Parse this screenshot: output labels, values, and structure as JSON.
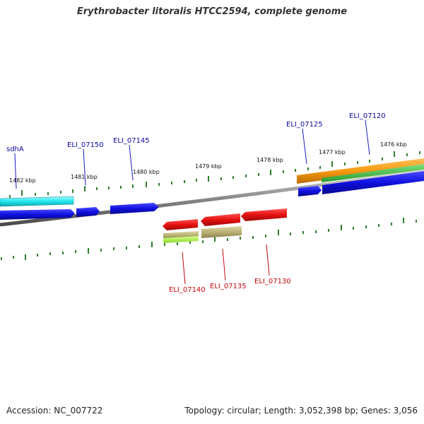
{
  "title": "Erythrobacter litoralis HTCC2594, complete genome",
  "footer": {
    "accession": "Accession: NC_007722",
    "summary": "Topology: circular; Length: 3,052,398 bp; Genes: 3,056"
  },
  "ruler": [
    "1482 kbp",
    "1481 kbp",
    "1480 kbp",
    "1479 kbp",
    "1478 kbp",
    "1477 kbp",
    "1476 kbp"
  ],
  "genes_forward": [
    "sdhA",
    "ELI_07150",
    "ELI_07145",
    "ELI_07125",
    "ELI_07120"
  ],
  "genes_reverse": [
    "ELI_07140",
    "ELI_07135",
    "ELI_07130"
  ],
  "colors": {
    "forward_gene": "#1010e0",
    "reverse_gene": "#e61010",
    "backbone": "#8a8a8a",
    "tick": "#2e7d2e",
    "cyan_feature": "#22e6ee",
    "orange_feature": "#f79a10",
    "green_feature": "#3ec23e",
    "olive_feature": "#b9b073",
    "lime_feature": "#aef03c",
    "label_forward": "#0a0aa6",
    "label_reverse": "#c4070c"
  }
}
